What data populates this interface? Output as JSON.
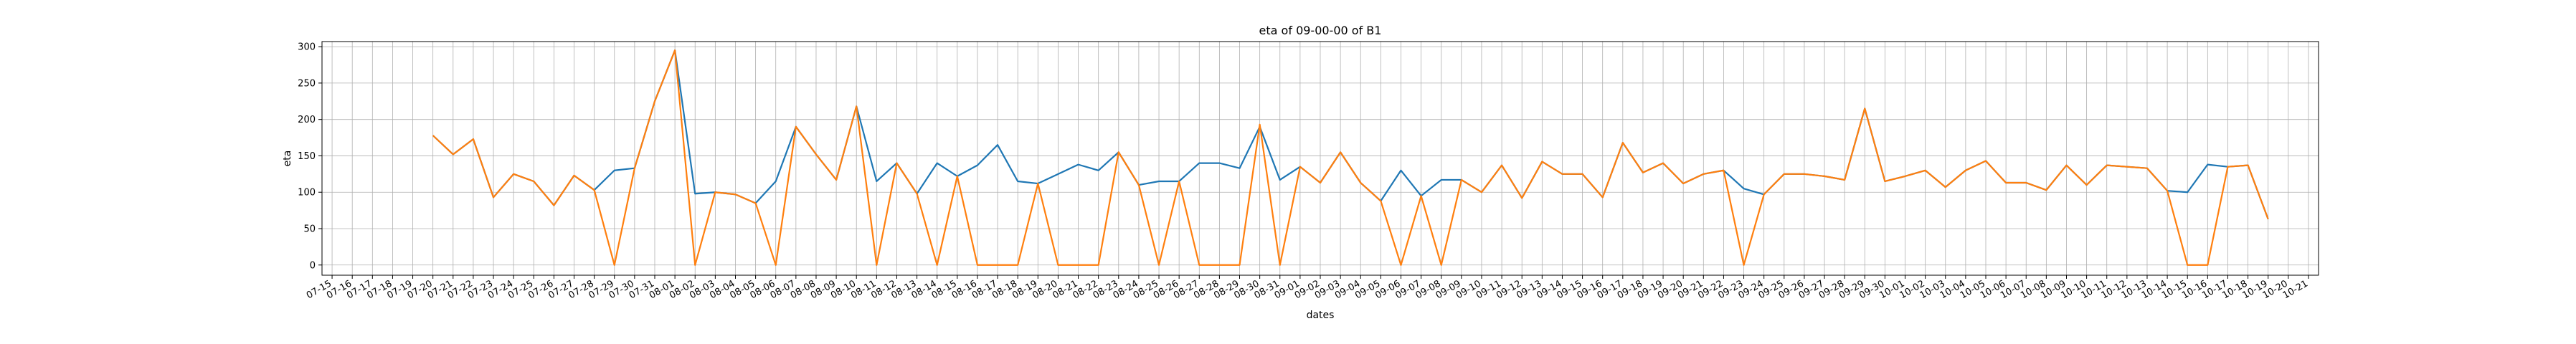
{
  "chart_data": {
    "type": "line",
    "title": "eta of 09-00-00 of B1",
    "xlabel": "dates",
    "ylabel": "eta",
    "ylim": [
      -14,
      307
    ],
    "yticks": [
      0,
      50,
      100,
      150,
      200,
      250,
      300
    ],
    "grid": true,
    "x_ticks": [
      "07-15",
      "07-16",
      "07-17",
      "07-18",
      "07-19",
      "07-20",
      "07-21",
      "07-22",
      "07-23",
      "07-24",
      "07-25",
      "07-26",
      "07-27",
      "07-28",
      "07-29",
      "07-30",
      "07-31",
      "08-01",
      "08-02",
      "08-03",
      "08-04",
      "08-05",
      "08-06",
      "08-07",
      "08-08",
      "08-09",
      "08-10",
      "08-11",
      "08-12",
      "08-13",
      "08-14",
      "08-15",
      "08-16",
      "08-17",
      "08-18",
      "08-19",
      "08-20",
      "08-21",
      "08-22",
      "08-23",
      "08-24",
      "08-25",
      "08-26",
      "08-27",
      "08-28",
      "08-29",
      "08-30",
      "08-31",
      "09-01",
      "09-02",
      "09-03",
      "09-04",
      "09-05",
      "09-06",
      "09-07",
      "09-08",
      "09-09",
      "09-10",
      "09-11",
      "09-12",
      "09-13",
      "09-14",
      "09-15",
      "09-16",
      "09-17",
      "09-18",
      "09-19",
      "09-20",
      "09-21",
      "09-22",
      "09-23",
      "09-24",
      "09-25",
      "09-26",
      "09-27",
      "09-28",
      "09-29",
      "09-30",
      "10-01",
      "10-02",
      "10-03",
      "10-04",
      "10-05",
      "10-06",
      "10-07",
      "10-08",
      "10-09",
      "10-10",
      "10-11",
      "10-12",
      "10-13",
      "10-14",
      "10-15",
      "10-16",
      "10-17",
      "10-18",
      "10-19",
      "10-20",
      "10-21"
    ],
    "series": [
      {
        "color": "#1f77b4",
        "start": "07-20",
        "values": [
          178,
          152,
          173,
          93,
          125,
          115,
          82,
          123,
          103,
          130,
          133,
          225,
          295,
          98,
          100,
          97,
          85,
          115,
          190,
          152,
          117,
          218,
          115,
          140,
          98,
          140,
          122,
          137,
          165,
          115,
          112,
          125,
          138,
          130,
          155,
          110,
          115,
          115,
          140,
          140,
          133,
          190,
          117,
          135,
          113,
          155,
          113,
          88,
          130,
          95,
          117,
          117,
          100,
          137,
          92,
          142,
          125,
          125,
          93,
          168,
          127,
          140,
          112,
          125,
          130,
          105,
          97,
          125,
          125,
          122,
          117,
          215,
          115,
          122,
          130,
          107,
          130,
          143,
          113,
          113,
          103,
          137,
          110,
          137,
          135,
          133,
          102,
          100,
          138,
          135,
          137,
          63
        ]
      },
      {
        "color": "#ff7f0e",
        "start": "07-20",
        "values": [
          178,
          152,
          173,
          93,
          125,
          115,
          82,
          123,
          103,
          0,
          133,
          225,
          295,
          0,
          100,
          97,
          85,
          0,
          190,
          152,
          117,
          218,
          0,
          140,
          98,
          0,
          122,
          0,
          0,
          0,
          112,
          0,
          0,
          0,
          155,
          110,
          0,
          115,
          0,
          0,
          0,
          193,
          0,
          135,
          113,
          155,
          113,
          88,
          0,
          95,
          0,
          117,
          100,
          137,
          92,
          142,
          125,
          125,
          93,
          168,
          127,
          140,
          112,
          125,
          130,
          0,
          97,
          125,
          125,
          122,
          117,
          215,
          115,
          122,
          130,
          107,
          130,
          143,
          113,
          113,
          103,
          137,
          110,
          137,
          135,
          133,
          102,
          0,
          0,
          135,
          137,
          63
        ]
      }
    ]
  }
}
